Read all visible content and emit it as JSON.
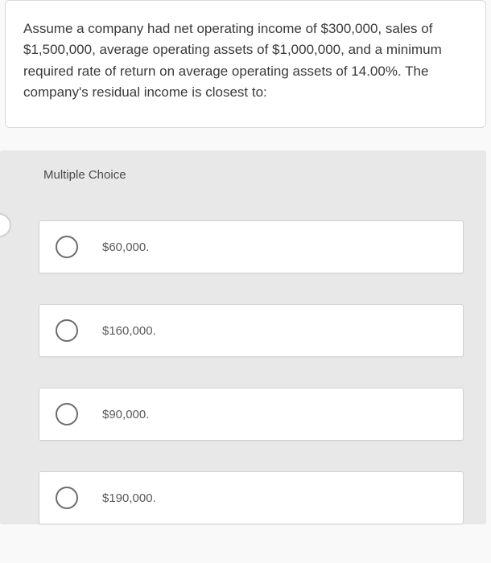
{
  "question": {
    "text": "Assume a company had net operating income of $300,000, sales of $1,500,000, average operating assets of $1,000,000, and a minimum required rate of return on average operating assets of 14.00%. The company's residual income is closest to:"
  },
  "mc": {
    "heading": "Multiple Choice",
    "options": [
      {
        "label": "$60,000."
      },
      {
        "label": "$160,000."
      },
      {
        "label": "$90,000."
      },
      {
        "label": "$190,000."
      }
    ]
  },
  "colors": {
    "card_bg": "#ffffff",
    "page_bg": "#f9f9f9",
    "mc_bg": "#e8e8e8",
    "option_bg": "#ffffff",
    "border": "#d0d0d0",
    "radio_border": "#6c6c6c",
    "text_main": "#3a3a3a",
    "text_sub": "#5a5a5a"
  }
}
